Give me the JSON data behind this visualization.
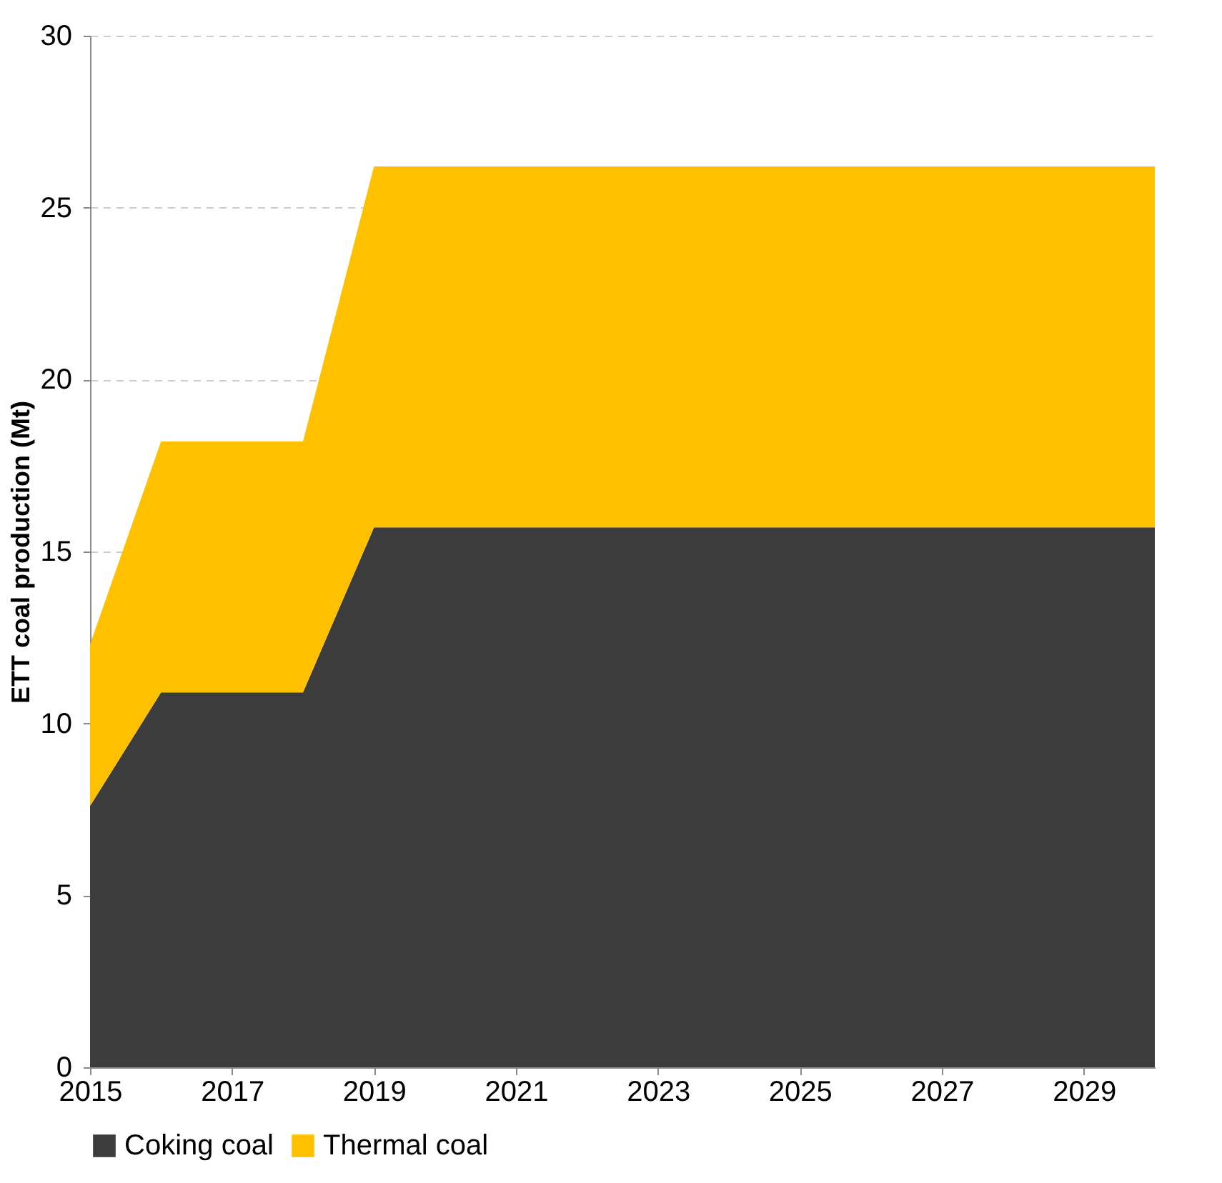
{
  "chart_data": {
    "type": "area",
    "stacked": true,
    "ylabel": "ETT coal production (Mt)",
    "x": [
      2015,
      2016,
      2017,
      2018,
      2019,
      2020,
      2021,
      2022,
      2023,
      2024,
      2025,
      2026,
      2027,
      2028,
      2029,
      2030
    ],
    "series": [
      {
        "name": "Coking coal",
        "color": "#3c3c3c",
        "values": [
          7.6,
          10.9,
          10.9,
          10.9,
          15.7,
          15.7,
          15.7,
          15.7,
          15.7,
          15.7,
          15.7,
          15.7,
          15.7,
          15.7,
          15.7,
          15.7
        ]
      },
      {
        "name": "Thermal coal",
        "color": "#ffc000",
        "values": [
          4.7,
          7.3,
          7.3,
          7.3,
          10.5,
          10.5,
          10.5,
          10.5,
          10.5,
          10.5,
          10.5,
          10.5,
          10.5,
          10.5,
          10.5,
          10.5
        ]
      }
    ],
    "xlim": [
      2015,
      2030
    ],
    "xticks": [
      2015,
      2017,
      2019,
      2021,
      2023,
      2025,
      2027,
      2029
    ],
    "ylim": [
      0,
      30
    ],
    "yticks": [
      0,
      5,
      10,
      15,
      20,
      25,
      30
    ],
    "grid": "y",
    "legend": "bottom"
  }
}
